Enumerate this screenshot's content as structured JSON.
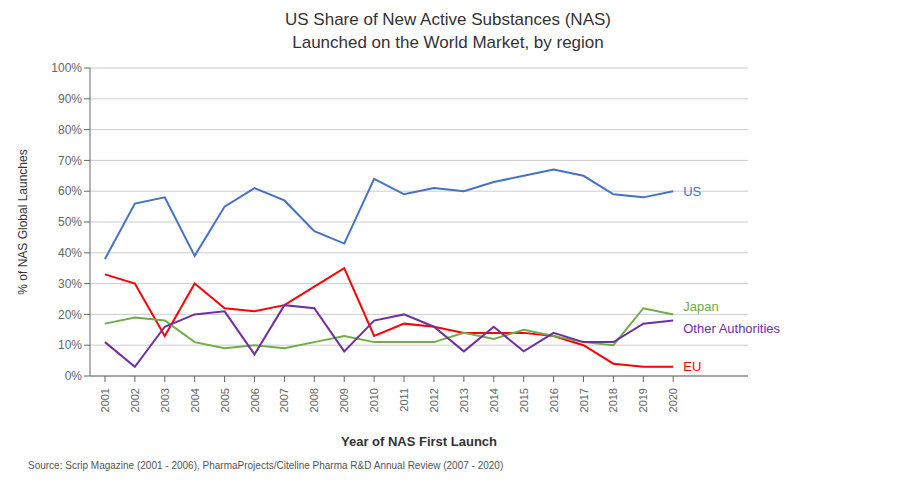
{
  "chart_data": {
    "type": "line",
    "title": "US Share of New Active Substances (NAS)",
    "subtitle": "Launched on the World Market, by region",
    "xlabel": "Year of NAS First Launch",
    "ylabel": "% of NAS Global Launches",
    "annotations": [
      "Source: Scrip Magazine (2001 - 2006), PharmaProjects/Citeline Pharma R&D Annual Review (2007 - 2020)"
    ],
    "x": [
      2001,
      2002,
      2003,
      2004,
      2005,
      2006,
      2007,
      2008,
      2009,
      2010,
      2011,
      2012,
      2013,
      2014,
      2015,
      2016,
      2017,
      2018,
      2019,
      2020
    ],
    "series": [
      {
        "name": "US",
        "color": "#4472C4",
        "values": [
          38,
          56,
          58,
          39,
          55,
          61,
          57,
          47,
          43,
          64,
          59,
          61,
          60,
          63,
          65,
          67,
          65,
          59,
          58,
          60
        ]
      },
      {
        "name": "EU",
        "color": "#FF0000",
        "values": [
          33,
          30,
          13,
          30,
          22,
          21,
          23,
          29,
          35,
          13,
          17,
          16,
          14,
          14,
          14,
          13,
          10,
          4,
          3,
          3
        ]
      },
      {
        "name": "Japan",
        "color": "#70AD47",
        "values": [
          17,
          19,
          18,
          11,
          9,
          10,
          9,
          11,
          13,
          11,
          11,
          11,
          14,
          12,
          15,
          13,
          11,
          10,
          22,
          20
        ]
      },
      {
        "name": "Other Authorities",
        "color": "#7030A0",
        "values": [
          11,
          3,
          16,
          20,
          21,
          7,
          23,
          22,
          8,
          18,
          20,
          16,
          8,
          16,
          8,
          14,
          11,
          11,
          17,
          18
        ]
      }
    ],
    "xlim": [
      2000.5,
      2022.5
    ],
    "xticks": [
      2001,
      2002,
      2003,
      2004,
      2005,
      2006,
      2007,
      2008,
      2009,
      2010,
      2011,
      2012,
      2013,
      2014,
      2015,
      2016,
      2017,
      2018,
      2019,
      2020
    ],
    "ylim": [
      0,
      100
    ],
    "yticks": [
      {
        "value": 0,
        "label": "0%"
      },
      {
        "value": 10,
        "label": "10%"
      },
      {
        "value": 20,
        "label": "20%"
      },
      {
        "value": 30,
        "label": "30%"
      },
      {
        "value": 40,
        "label": "40%"
      },
      {
        "value": 50,
        "label": "50%"
      },
      {
        "value": 60,
        "label": "60%"
      },
      {
        "value": 70,
        "label": "70%"
      },
      {
        "value": 80,
        "label": "80%"
      },
      {
        "value": 90,
        "label": "90%"
      },
      {
        "value": 100,
        "label": "100%"
      }
    ],
    "grid": true
  }
}
